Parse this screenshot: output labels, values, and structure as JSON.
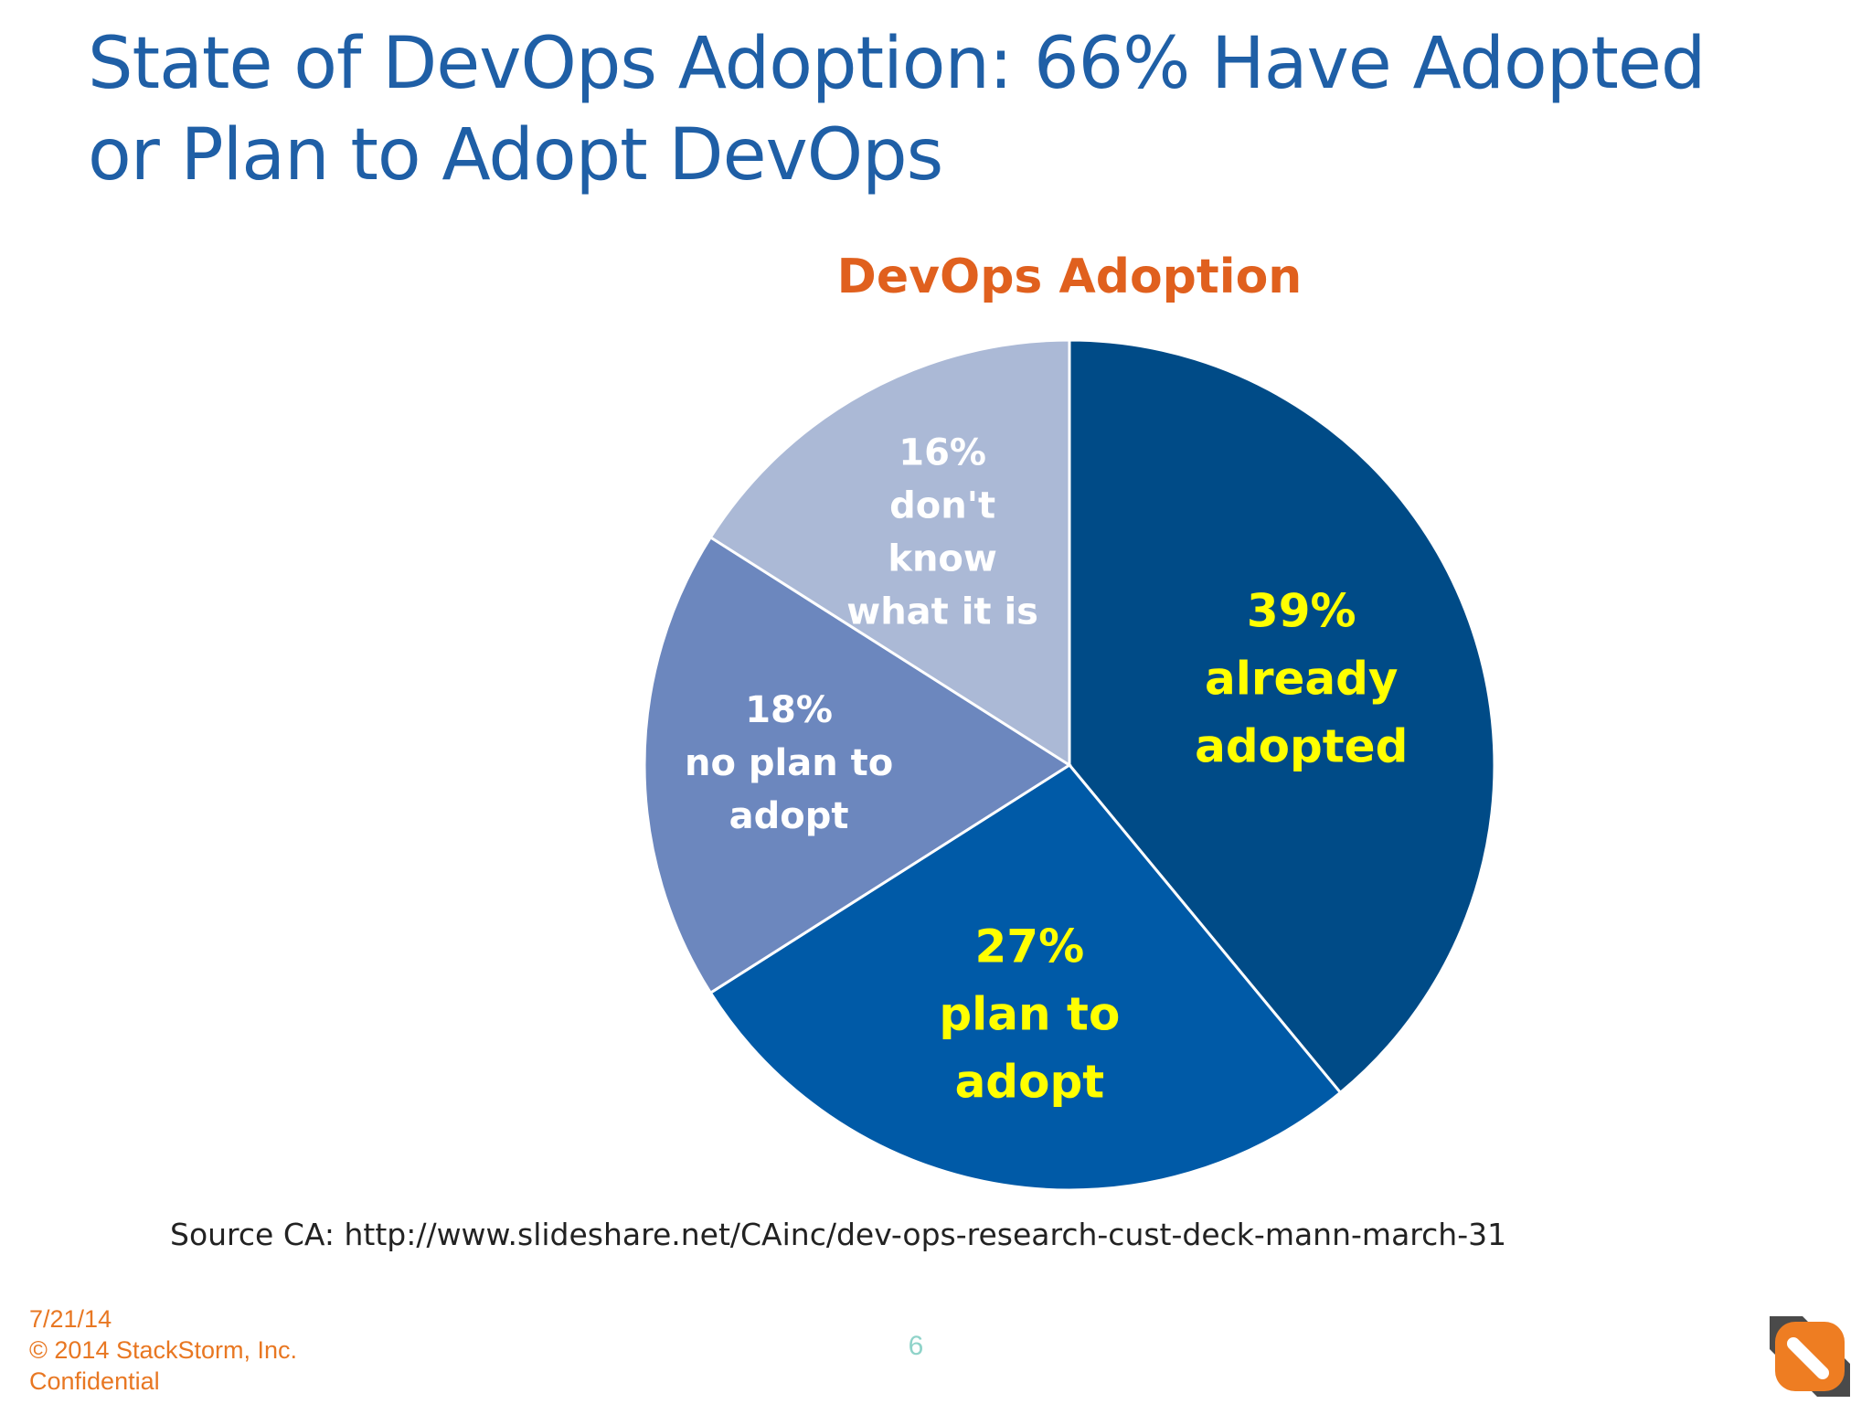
{
  "slide": {
    "title": "State of DevOps Adoption: 66% Have Adopted or Plan to Adopt DevOps",
    "source": "Source CA: http://www.slideshare.net/CAinc/dev-ops-research-cust-deck-mann-march-31",
    "footer": {
      "date": "7/21/14",
      "copyright": "© 2014 StackStorm, Inc.",
      "confidential": "Confidential"
    },
    "page_number": "6",
    "logo_icon": "stackstorm-logo-icon"
  },
  "chart_data": {
    "type": "pie",
    "title": "DevOps Adoption",
    "start_angle_deg": 0,
    "direction": "clockwise",
    "slices": [
      {
        "category": "already adopted",
        "value": 39,
        "color": "#004b87",
        "label_color": "#ffff00",
        "label_lines": [
          "39%",
          "already",
          "adopted"
        ]
      },
      {
        "category": "plan to adopt",
        "value": 27,
        "color": "#005aa7",
        "label_color": "#ffff00",
        "label_lines": [
          "27%",
          "plan to",
          "adopt"
        ]
      },
      {
        "category": "no plan to adopt",
        "value": 18,
        "color": "#6c87be",
        "label_color": "#ffffff",
        "label_lines": [
          "18%",
          "no plan to",
          "adopt"
        ]
      },
      {
        "category": "don't know what it is",
        "value": 16,
        "color": "#abb9d6",
        "label_color": "#ffffff",
        "label_lines": [
          "16%",
          "don't",
          "know",
          "what it is"
        ]
      }
    ]
  }
}
